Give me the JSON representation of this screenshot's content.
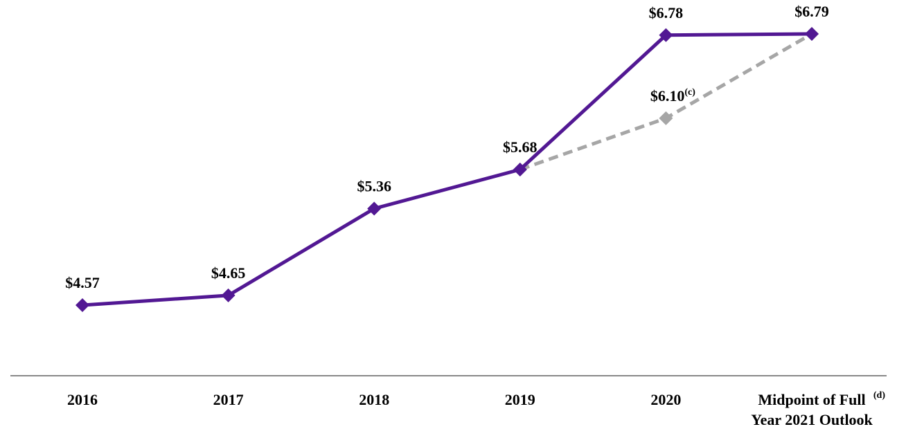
{
  "chart_data": {
    "type": "line",
    "categories": [
      "2016",
      "2017",
      "2018",
      "2019",
      "2020",
      "Midpoint of Full Year 2021 Outlook"
    ],
    "category_notes": [
      null,
      null,
      null,
      null,
      null,
      "(d)"
    ],
    "series": [
      {
        "color": "#a6a6a6",
        "dashed": true,
        "values": [
          null,
          null,
          null,
          5.68,
          6.1,
          6.79
        ],
        "value_labels": [
          null,
          null,
          null,
          null,
          "$6.10",
          null
        ],
        "label_notes": [
          null,
          null,
          null,
          null,
          "(c)",
          null
        ]
      },
      {
        "color": "#521893",
        "dashed": false,
        "values": [
          4.57,
          4.65,
          5.36,
          5.68,
          6.78,
          6.79
        ],
        "value_labels": [
          "$4.57",
          "$4.65",
          "$5.36",
          "$5.68",
          "$6.78",
          "$6.79"
        ],
        "label_notes": [
          null,
          null,
          null,
          null,
          null,
          null
        ]
      }
    ]
  }
}
